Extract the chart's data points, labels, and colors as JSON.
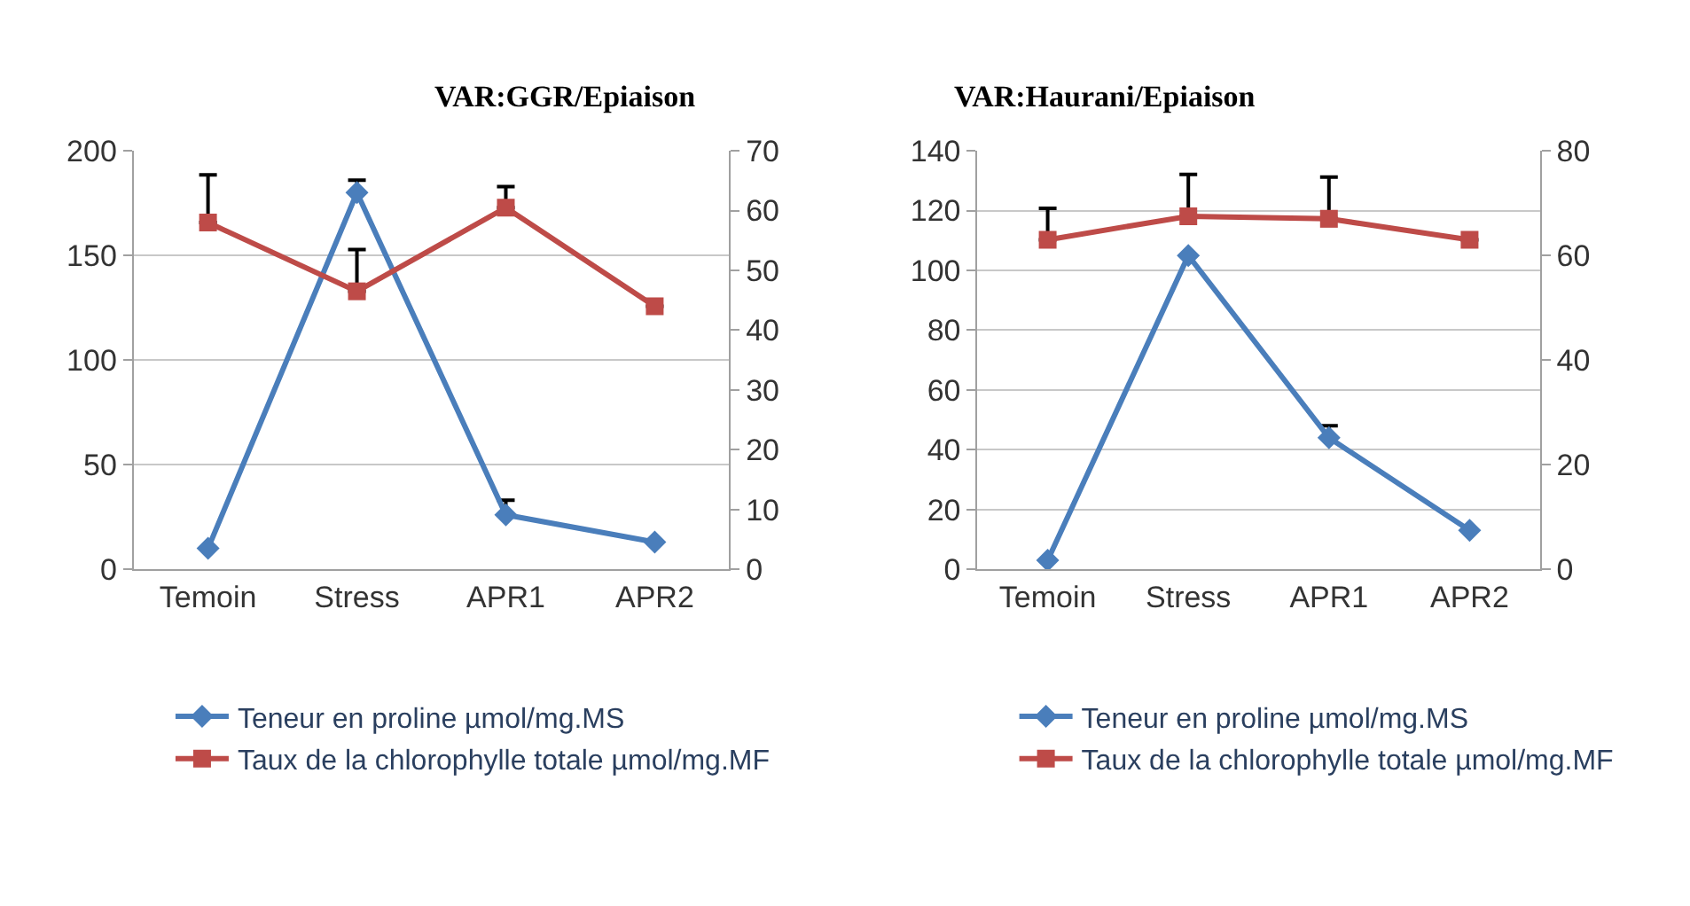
{
  "chart_data": [
    {
      "type": "line",
      "title": "VAR:GGR/Epiaison",
      "categories": [
        "Temoin",
        "Stress",
        "APR1",
        "APR2"
      ],
      "ylim": [
        0,
        200
      ],
      "yticks": [
        0,
        50,
        100,
        150,
        200
      ],
      "y2lim": [
        0,
        70
      ],
      "y2ticks": [
        0,
        10,
        20,
        30,
        40,
        50,
        60,
        70
      ],
      "grid": "y",
      "legend": "bottom",
      "series": [
        {
          "name": "Teneur en proline µmol/mg.MS",
          "color": "#4a7ebb",
          "marker": "diamond",
          "values": [
            10,
            180,
            26,
            13
          ],
          "errors": [
            null,
            [
              180,
              186
            ],
            [
              26,
              33
            ],
            null
          ]
        },
        {
          "name": "Taux de la chlorophylle totale µmol/mg.MF",
          "color": "#be4b48",
          "marker": "square",
          "axis": "y2",
          "values": [
            58,
            46.5,
            60.5,
            44
          ],
          "errors": [
            [
              58,
              66
            ],
            [
              46.5,
              53.5
            ],
            [
              60.5,
              64
            ],
            null
          ]
        }
      ]
    },
    {
      "type": "line",
      "title": "VAR:Haurani/Epiaison",
      "categories": [
        "Temoin",
        "Stress",
        "APR1",
        "APR2"
      ],
      "ylim": [
        0,
        140
      ],
      "yticks": [
        0,
        20,
        40,
        60,
        80,
        100,
        120,
        140
      ],
      "y2lim": [
        0,
        80
      ],
      "y2ticks": [
        0,
        20,
        40,
        60,
        80
      ],
      "grid": "y",
      "legend": "bottom",
      "series": [
        {
          "name": "Teneur en proline µmol/mg.MS",
          "color": "#4a7ebb",
          "marker": "diamond",
          "values": [
            3,
            105,
            44,
            13
          ],
          "errors": [
            null,
            null,
            [
              44,
              48
            ],
            null
          ]
        },
        {
          "name": "Taux de la chlorophylle totale µmol/mg.MF",
          "color": "#be4b48",
          "marker": "square",
          "axis": "y2",
          "values": [
            63,
            67.5,
            67,
            63
          ],
          "errors": [
            [
              63,
              69
            ],
            [
              67.5,
              75.5
            ],
            [
              67,
              75
            ],
            null
          ]
        }
      ]
    }
  ]
}
